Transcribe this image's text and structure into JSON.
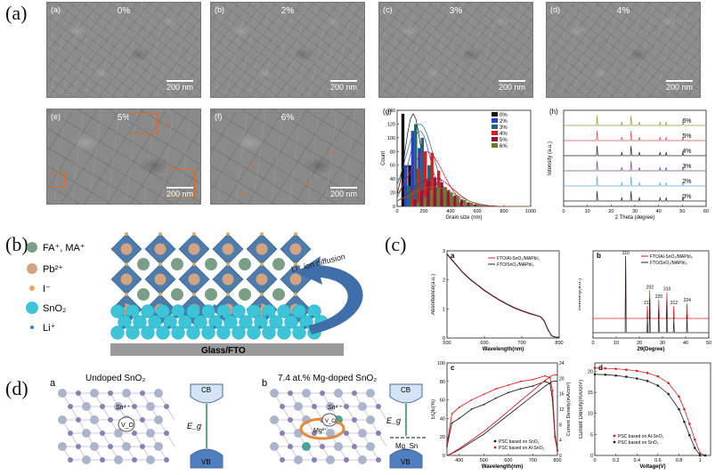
{
  "row_labels": {
    "a": "(a)",
    "b": "(b)",
    "c": "(c)",
    "d": "(d)"
  },
  "sem_panels": [
    {
      "label": "(a)",
      "pct": "0%",
      "scale": "200 nm"
    },
    {
      "label": "(b)",
      "pct": "2%",
      "scale": "200 nm"
    },
    {
      "label": "(c)",
      "pct": "3%",
      "scale": "200 nm"
    },
    {
      "label": "(d)",
      "pct": "4%",
      "scale": "200 nm"
    },
    {
      "label": "(e)",
      "pct": "5%",
      "scale": "200 nm"
    },
    {
      "label": "(f)",
      "pct": "6%",
      "scale": "200 nm"
    }
  ],
  "panel_g": {
    "label": "(g)"
  },
  "panel_h": {
    "label": "(h)"
  },
  "schematic_b": {
    "legend": [
      "FA⁺, MA⁺",
      "Pb²⁺",
      "I⁻",
      "SnO₂",
      "Li⁺"
    ],
    "arrow_text": "Li⁺ ion diffusion",
    "substrate": "Glass/FTO",
    "colors": {
      "fa": "#7a9f86",
      "pb": "#d3a482",
      "i": "#d8b05a",
      "sno2": "#3cc4d8",
      "li": "#2a7fb8",
      "octa": "#4d7bab"
    }
  },
  "panel_c_labels": {
    "a": "a",
    "b": "b",
    "c": "c",
    "d": "d"
  },
  "panel_d": {
    "a": {
      "letter": "a",
      "title": "Undoped SnO₂",
      "sn": "Sn⁴⁺",
      "vo": "V_O",
      "cb": "CB",
      "vb": "VB",
      "eg": "E_g"
    },
    "b": {
      "letter": "b",
      "title": "7.4 at.% Mg-doped SnO₂",
      "sn": "Sn⁴⁺",
      "vo": "V_O",
      "mg": "Mg²⁺",
      "cb": "CB",
      "vb": "VB",
      "eg": "E_g",
      "mgsn": "Mg_Sn"
    }
  },
  "chart_data": [
    {
      "id": "g",
      "type": "bar",
      "title": "",
      "xlabel": "Grain size (nm)",
      "ylabel": "Count",
      "xlim": [
        0,
        1000
      ],
      "ylim": [
        0,
        140
      ],
      "xticks": [
        0,
        200,
        400,
        600,
        800,
        1000
      ],
      "yticks": [
        0,
        20,
        40,
        60,
        80,
        100,
        120,
        140
      ],
      "legend": [
        "0%",
        "2%",
        "3%",
        "4%",
        "5%",
        "6%"
      ],
      "colors": [
        "#111111",
        "#2a3fc8",
        "#1a6b6b",
        "#d62020",
        "#8b1a3a",
        "#6b7a30"
      ],
      "categories": [
        100,
        150,
        200,
        250,
        300,
        350,
        400,
        450,
        500,
        550,
        600
      ],
      "series": [
        {
          "name": "0%",
          "values": [
            135,
            60,
            40,
            20,
            8,
            3,
            1,
            0,
            0,
            0,
            0
          ]
        },
        {
          "name": "2%",
          "values": [
            60,
            110,
            85,
            40,
            15,
            6,
            2,
            1,
            0,
            0,
            0
          ]
        },
        {
          "name": "3%",
          "values": [
            30,
            120,
            100,
            60,
            28,
            12,
            6,
            3,
            1,
            0,
            0
          ]
        },
        {
          "name": "4%",
          "values": [
            25,
            55,
            80,
            78,
            52,
            28,
            14,
            6,
            3,
            1,
            0
          ]
        },
        {
          "name": "5%",
          "values": [
            10,
            25,
            38,
            42,
            35,
            24,
            16,
            10,
            6,
            3,
            1
          ]
        },
        {
          "name": "6%",
          "values": [
            6,
            14,
            24,
            28,
            26,
            20,
            14,
            9,
            5,
            3,
            1
          ]
        }
      ]
    },
    {
      "id": "h",
      "type": "line",
      "xlabel": "2 Theta (degree)",
      "ylabel": "Intensity (a.u.)",
      "xlim": [
        0,
        60
      ],
      "xticks": [
        0,
        10,
        20,
        30,
        40,
        50,
        60
      ],
      "series_labels": [
        "0%",
        "2%",
        "3%",
        "4%",
        "5%",
        "6%"
      ],
      "colors": [
        "#222222",
        "#5aa8d8",
        "#7a4a8a",
        "#222222",
        "#d65050",
        "#9a9a30"
      ],
      "peaks_2theta": [
        14.1,
        24.5,
        28.4,
        31.9,
        40.6,
        43.2,
        50.2
      ]
    },
    {
      "id": "ca",
      "type": "line",
      "letter": "a",
      "xlabel": "Wavelength(nm)",
      "ylabel": "Absorbance(a.u.)",
      "xlim": [
        500,
        800
      ],
      "ylim": [
        0,
        3
      ],
      "xticks": [
        500,
        600,
        700,
        800
      ],
      "yticks": [
        0,
        1,
        2,
        3
      ],
      "legend": [
        "FTO/Al-SnO₂/MAPbI₃",
        "FTO/SnO₂/MAPbI₃"
      ],
      "colors": [
        "#d62020",
        "#222222"
      ],
      "x": [
        500,
        520,
        540,
        560,
        580,
        600,
        620,
        640,
        660,
        680,
        700,
        720,
        740,
        750,
        760,
        770,
        780,
        790,
        800
      ],
      "series": [
        {
          "name": "FTO/Al-SnO₂/MAPbI₃",
          "values": [
            2.9,
            2.6,
            2.3,
            2.05,
            1.85,
            1.65,
            1.48,
            1.32,
            1.18,
            1.05,
            0.95,
            0.86,
            0.78,
            0.74,
            0.6,
            0.3,
            0.08,
            0.03,
            0.02
          ]
        },
        {
          "name": "FTO/SnO₂/MAPbI₃",
          "values": [
            2.88,
            2.58,
            2.28,
            2.03,
            1.83,
            1.63,
            1.46,
            1.3,
            1.16,
            1.03,
            0.93,
            0.84,
            0.77,
            0.73,
            0.58,
            0.28,
            0.07,
            0.03,
            0.02
          ]
        }
      ]
    },
    {
      "id": "cb",
      "type": "line",
      "letter": "b",
      "xlabel": "2θ(Degree)",
      "ylabel": "Intensity(a.u.)",
      "xlim": [
        0,
        50
      ],
      "xticks": [
        0,
        10,
        20,
        30,
        40,
        50
      ],
      "legend": [
        "FTO/Al-SnO₂/MAPbI₃",
        "FTO/SnO₂/MAPbI₃"
      ],
      "colors": [
        "#d62020",
        "#222222"
      ],
      "peak_labels": [
        {
          "hkl": "110",
          "two_theta": 14.1,
          "h": 1.0
        },
        {
          "hkl": "202",
          "two_theta": 24.5,
          "h": 0.45
        },
        {
          "hkl": "211",
          "two_theta": 23.5,
          "h": 0.2
        },
        {
          "hkl": "220",
          "two_theta": 28.4,
          "h": 0.3
        },
        {
          "hkl": "310",
          "two_theta": 31.9,
          "h": 0.42
        },
        {
          "hkl": "312",
          "two_theta": 34.9,
          "h": 0.2
        },
        {
          "hkl": "224",
          "two_theta": 40.6,
          "h": 0.24
        }
      ]
    },
    {
      "id": "cc",
      "type": "line",
      "letter": "c",
      "xlabel": "Wavelength(nm)",
      "ylabel": "EQE(%)",
      "y2label": "Current Density(mA/cm²)",
      "xlim": [
        350,
        800
      ],
      "ylim": [
        0,
        100
      ],
      "y2lim": [
        0,
        24
      ],
      "xticks": [
        400,
        500,
        600,
        700,
        800
      ],
      "yticks": [
        0,
        20,
        40,
        60,
        80,
        100
      ],
      "y2ticks": [
        0,
        4,
        8,
        12,
        16,
        20,
        24
      ],
      "legend": [
        "PSC based on SnO₂",
        "PSC based on Al-SnO₂"
      ],
      "colors": [
        "#222222",
        "#d62020"
      ],
      "x": [
        350,
        370,
        400,
        450,
        500,
        550,
        600,
        650,
        700,
        750,
        770,
        780,
        790,
        800
      ],
      "series": [
        {
          "name": "PSC based on SnO₂ EQE",
          "values": [
            10,
            35,
            40,
            50,
            55,
            62,
            68,
            72,
            75,
            80,
            78,
            60,
            20,
            5
          ]
        },
        {
          "name": "PSC based on Al-SnO₂ EQE",
          "values": [
            12,
            45,
            52,
            60,
            66,
            72,
            76,
            80,
            82,
            86,
            84,
            70,
            25,
            6
          ]
        },
        {
          "name": "PSC based on SnO₂ Jsc",
          "values": [
            0,
            0.5,
            1.5,
            3.5,
            5.5,
            8,
            10.5,
            13,
            15.5,
            18,
            18.8,
            19.2,
            19.3,
            19.3
          ]
        },
        {
          "name": "PSC based on Al-SnO₂ Jsc",
          "values": [
            0,
            0.6,
            1.8,
            4,
            6.2,
            8.8,
            11.5,
            14.2,
            16.8,
            19.5,
            20.4,
            20.8,
            20.9,
            20.9
          ]
        }
      ]
    },
    {
      "id": "cd",
      "type": "line",
      "letter": "d",
      "xlabel": "Voltage(V)",
      "ylabel": "Current Density(mA/cm²)",
      "xlim": [
        0,
        1.1
      ],
      "ylim": [
        0,
        22
      ],
      "xticks": [
        0.0,
        0.2,
        0.4,
        0.6,
        0.8,
        1.0
      ],
      "yticks": [
        0,
        5,
        10,
        15,
        20
      ],
      "legend": [
        "PSC based on Al-SnO₂",
        "PSC based on SnO₂"
      ],
      "colors": [
        "#d62020",
        "#222222"
      ],
      "x": [
        0,
        0.1,
        0.2,
        0.3,
        0.4,
        0.5,
        0.6,
        0.7,
        0.8,
        0.85,
        0.9,
        0.95,
        1.0,
        1.05
      ],
      "series": [
        {
          "name": "PSC based on Al-SnO₂",
          "values": [
            20.8,
            20.7,
            20.6,
            20.4,
            20.1,
            19.6,
            18.8,
            17.2,
            14.0,
            11.0,
            7.5,
            3.8,
            0.5,
            0
          ]
        },
        {
          "name": "PSC based on SnO₂",
          "values": [
            19.3,
            19.2,
            19.0,
            18.7,
            18.3,
            17.7,
            16.6,
            14.6,
            11.0,
            8.0,
            4.8,
            1.8,
            0,
            0
          ]
        }
      ]
    }
  ]
}
